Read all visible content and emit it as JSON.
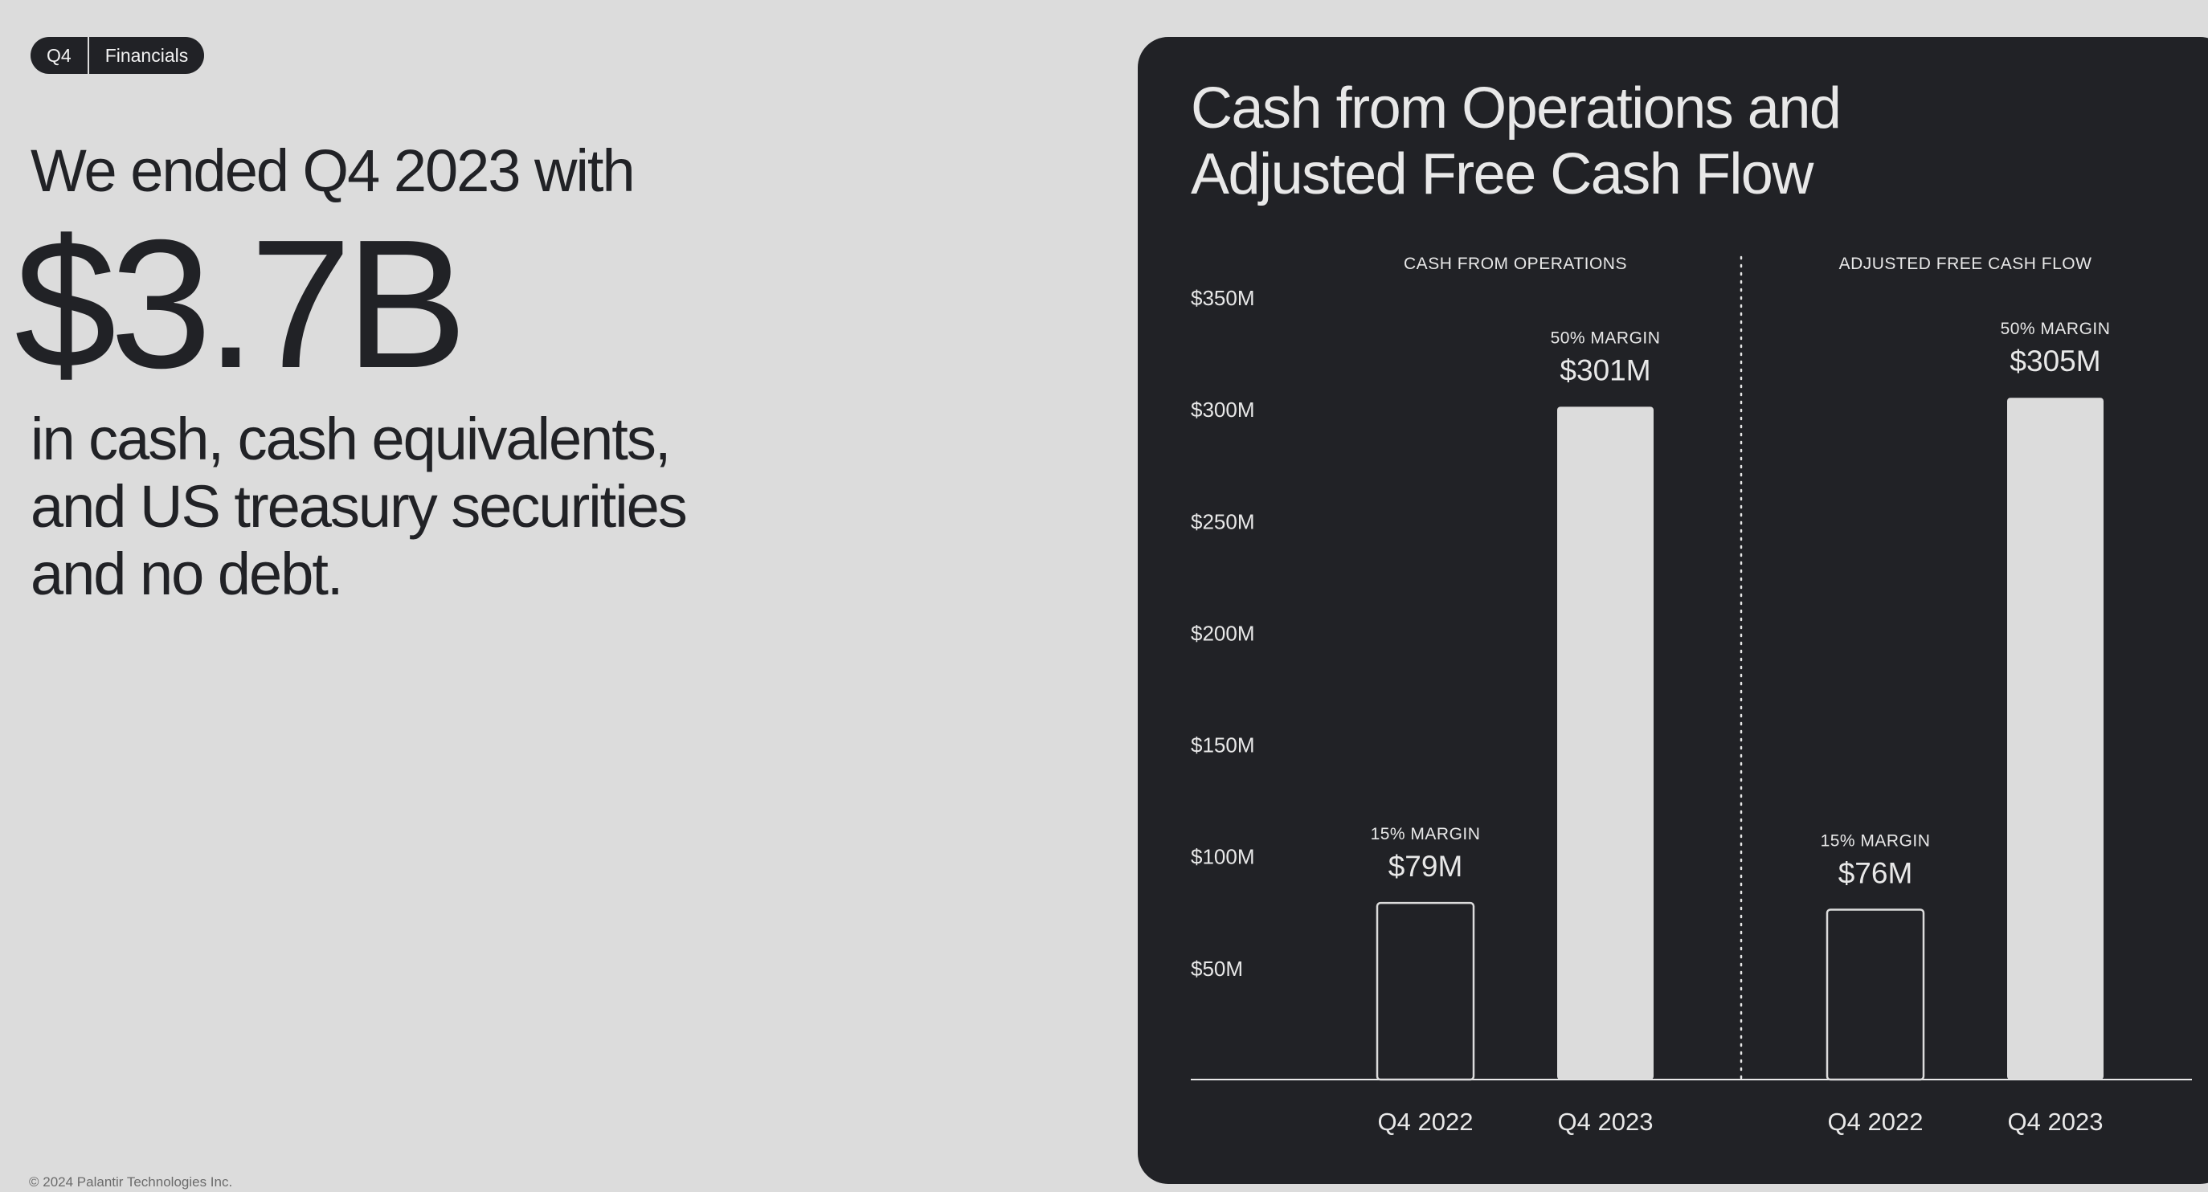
{
  "header": {
    "quarter": "Q4",
    "section": "Financials"
  },
  "headline": {
    "lead": "We ended Q4 2023 with",
    "amount": "$3.7B",
    "lines": [
      "in cash, cash equivalents,",
      "and US treasury securities",
      "and no debt."
    ]
  },
  "footer": {
    "copyright": "© 2024 Palantir Technologies Inc."
  },
  "colors": {
    "background": "#dcdcdc",
    "panel": "#212226",
    "bar_light": "#dcdcdc",
    "text_light": "#e8e8e8"
  },
  "chart_data": {
    "type": "bar",
    "title": "Cash from Operations and Adjusted Free Cash Flow",
    "title_lines": [
      "Cash from Operations and",
      "Adjusted Free Cash Flow"
    ],
    "ylim": [
      0,
      350
    ],
    "y_ticks": [
      {
        "value": 50,
        "label": "$50M"
      },
      {
        "value": 100,
        "label": "$100M"
      },
      {
        "value": 150,
        "label": "$150M"
      },
      {
        "value": 200,
        "label": "$200M"
      },
      {
        "value": 250,
        "label": "$250M"
      },
      {
        "value": 300,
        "label": "$300M"
      },
      {
        "value": 350,
        "label": "$350M"
      }
    ],
    "groups": [
      {
        "name": "CASH FROM OPERATIONS",
        "bars": [
          {
            "category": "Q4 2022",
            "value": 79,
            "label": "$79M",
            "margin": "15% MARGIN",
            "style": "outline"
          },
          {
            "category": "Q4 2023",
            "value": 301,
            "label": "$301M",
            "margin": "50% MARGIN",
            "style": "filled"
          }
        ]
      },
      {
        "name": "ADJUSTED FREE CASH FLOW",
        "bars": [
          {
            "category": "Q4 2022",
            "value": 76,
            "label": "$76M",
            "margin": "15% MARGIN",
            "style": "outline"
          },
          {
            "category": "Q4 2023",
            "value": 305,
            "label": "$305M",
            "margin": "50% MARGIN",
            "style": "filled"
          }
        ]
      }
    ]
  }
}
